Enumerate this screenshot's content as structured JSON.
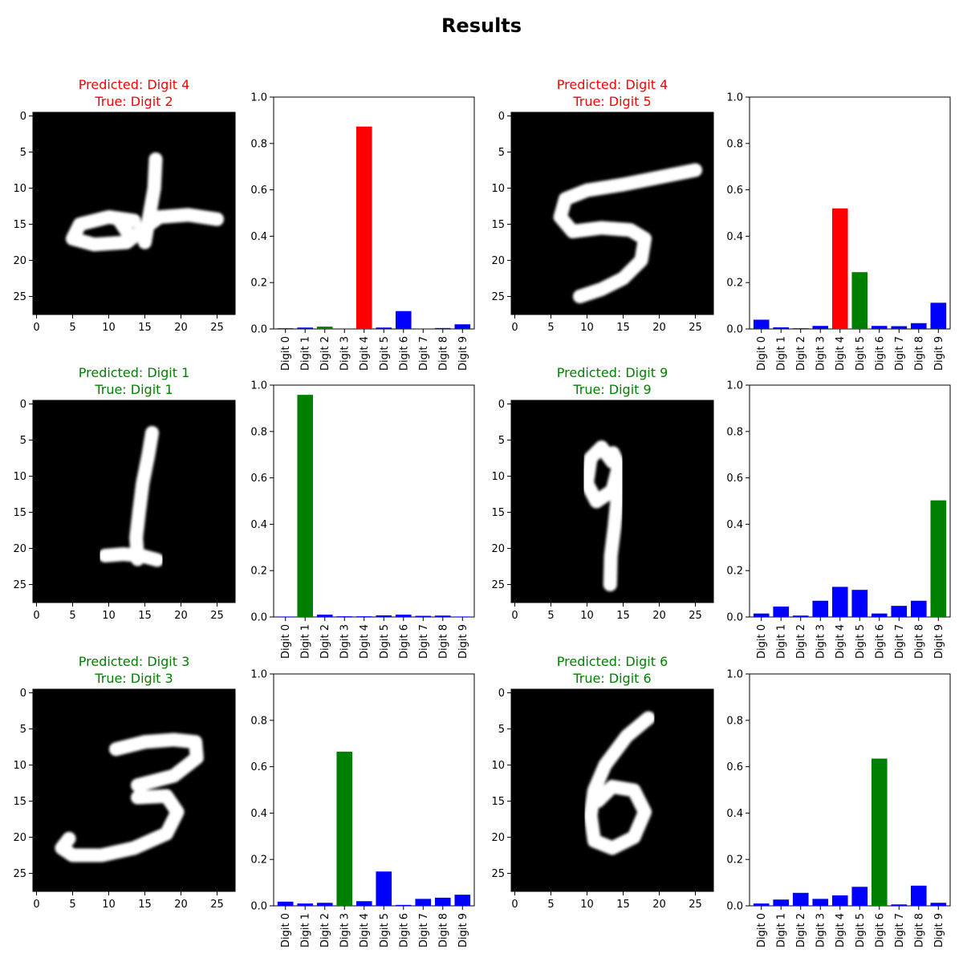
{
  "figure": {
    "title": "Results"
  },
  "colors": {
    "predicted_wrong": "#ff0000",
    "true_class": "#008000",
    "other": "#0000ff",
    "title_correct": "#008000",
    "title_wrong": "#ff0000"
  },
  "chart_data": [
    {
      "type": "bar",
      "panel_title_lines": [
        "Predicted: Digit 4",
        "True: Digit 2"
      ],
      "correct": false,
      "predicted_index": 4,
      "true_index": 2,
      "image_axis": {
        "xticks": [
          0,
          5,
          10,
          15,
          20,
          25
        ],
        "yticks": [
          0,
          5,
          10,
          15,
          20,
          25
        ],
        "digit": "2"
      },
      "categories": [
        "Digit 0",
        "Digit 1",
        "Digit 2",
        "Digit 3",
        "Digit 4",
        "Digit 5",
        "Digit 6",
        "Digit 7",
        "Digit 8",
        "Digit 9"
      ],
      "values": [
        0.003,
        0.006,
        0.01,
        0.001,
        0.873,
        0.006,
        0.077,
        0.001,
        0.004,
        0.02
      ],
      "ylim": [
        0,
        1.0
      ],
      "yticks": [
        0.0,
        0.2,
        0.4,
        0.6,
        0.8,
        1.0
      ]
    },
    {
      "type": "bar",
      "panel_title_lines": [
        "Predicted: Digit 4",
        "True: Digit 5"
      ],
      "correct": false,
      "predicted_index": 4,
      "true_index": 5,
      "image_axis": {
        "xticks": [
          0,
          5,
          10,
          15,
          20,
          25
        ],
        "yticks": [
          0,
          5,
          10,
          15,
          20,
          25
        ],
        "digit": "5"
      },
      "categories": [
        "Digit 0",
        "Digit 1",
        "Digit 2",
        "Digit 3",
        "Digit 4",
        "Digit 5",
        "Digit 6",
        "Digit 7",
        "Digit 8",
        "Digit 9"
      ],
      "values": [
        0.04,
        0.007,
        0.003,
        0.013,
        0.52,
        0.245,
        0.013,
        0.012,
        0.025,
        0.113
      ],
      "ylim": [
        0,
        1.0
      ],
      "yticks": [
        0.0,
        0.2,
        0.4,
        0.6,
        0.8,
        1.0
      ]
    },
    {
      "type": "bar",
      "panel_title_lines": [
        "Predicted: Digit 1",
        "True: Digit 1"
      ],
      "correct": true,
      "predicted_index": 1,
      "true_index": 1,
      "image_axis": {
        "xticks": [
          0,
          5,
          10,
          15,
          20,
          25
        ],
        "yticks": [
          0,
          5,
          10,
          15,
          20,
          25
        ],
        "digit": "1"
      },
      "categories": [
        "Digit 0",
        "Digit 1",
        "Digit 2",
        "Digit 3",
        "Digit 4",
        "Digit 5",
        "Digit 6",
        "Digit 7",
        "Digit 8",
        "Digit 9"
      ],
      "values": [
        0.002,
        0.958,
        0.01,
        0.003,
        0.003,
        0.007,
        0.01,
        0.005,
        0.006,
        0.002
      ],
      "ylim": [
        0,
        1.0
      ],
      "yticks": [
        0.0,
        0.2,
        0.4,
        0.6,
        0.8,
        1.0
      ]
    },
    {
      "type": "bar",
      "panel_title_lines": [
        "Predicted: Digit 9",
        "True: Digit 9"
      ],
      "correct": true,
      "predicted_index": 9,
      "true_index": 9,
      "image_axis": {
        "xticks": [
          0,
          5,
          10,
          15,
          20,
          25
        ],
        "yticks": [
          0,
          5,
          10,
          15,
          20,
          25
        ],
        "digit": "9"
      },
      "categories": [
        "Digit 0",
        "Digit 1",
        "Digit 2",
        "Digit 3",
        "Digit 4",
        "Digit 5",
        "Digit 6",
        "Digit 7",
        "Digit 8",
        "Digit 9"
      ],
      "values": [
        0.015,
        0.045,
        0.006,
        0.07,
        0.13,
        0.117,
        0.015,
        0.048,
        0.07,
        0.503
      ],
      "ylim": [
        0,
        1.0
      ],
      "yticks": [
        0.0,
        0.2,
        0.4,
        0.6,
        0.8,
        1.0
      ]
    },
    {
      "type": "bar",
      "panel_title_lines": [
        "Predicted: Digit 3",
        "True: Digit 3"
      ],
      "correct": true,
      "predicted_index": 3,
      "true_index": 3,
      "image_axis": {
        "xticks": [
          0,
          5,
          10,
          15,
          20,
          25
        ],
        "yticks": [
          0,
          5,
          10,
          15,
          20,
          25
        ],
        "digit": "3"
      },
      "categories": [
        "Digit 0",
        "Digit 1",
        "Digit 2",
        "Digit 3",
        "Digit 4",
        "Digit 5",
        "Digit 6",
        "Digit 7",
        "Digit 8",
        "Digit 9"
      ],
      "values": [
        0.018,
        0.01,
        0.013,
        0.665,
        0.02,
        0.148,
        0.004,
        0.03,
        0.035,
        0.048
      ],
      "ylim": [
        0,
        1.0
      ],
      "yticks": [
        0.0,
        0.2,
        0.4,
        0.6,
        0.8,
        1.0
      ]
    },
    {
      "type": "bar",
      "panel_title_lines": [
        "Predicted: Digit 6",
        "True: Digit 6"
      ],
      "correct": true,
      "predicted_index": 6,
      "true_index": 6,
      "image_axis": {
        "xticks": [
          0,
          5,
          10,
          15,
          20,
          25
        ],
        "yticks": [
          0,
          5,
          10,
          15,
          20,
          25
        ],
        "digit": "6"
      },
      "categories": [
        "Digit 0",
        "Digit 1",
        "Digit 2",
        "Digit 3",
        "Digit 4",
        "Digit 5",
        "Digit 6",
        "Digit 7",
        "Digit 8",
        "Digit 9"
      ],
      "values": [
        0.01,
        0.027,
        0.056,
        0.03,
        0.045,
        0.082,
        0.635,
        0.006,
        0.087,
        0.013
      ],
      "ylim": [
        0,
        1.0
      ],
      "yticks": [
        0.0,
        0.2,
        0.4,
        0.6,
        0.8,
        1.0
      ]
    }
  ]
}
